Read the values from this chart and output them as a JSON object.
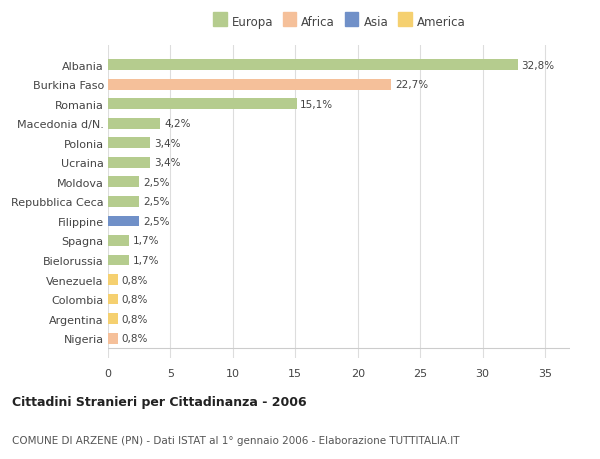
{
  "countries": [
    "Albania",
    "Burkina Faso",
    "Romania",
    "Macedonia d/N.",
    "Polonia",
    "Ucraina",
    "Moldova",
    "Repubblica Ceca",
    "Filippine",
    "Spagna",
    "Bielorussia",
    "Venezuela",
    "Colombia",
    "Argentina",
    "Nigeria"
  ],
  "values": [
    32.8,
    22.7,
    15.1,
    4.2,
    3.4,
    3.4,
    2.5,
    2.5,
    2.5,
    1.7,
    1.7,
    0.8,
    0.8,
    0.8,
    0.8
  ],
  "labels": [
    "32,8%",
    "22,7%",
    "15,1%",
    "4,2%",
    "3,4%",
    "3,4%",
    "2,5%",
    "2,5%",
    "2,5%",
    "1,7%",
    "1,7%",
    "0,8%",
    "0,8%",
    "0,8%",
    "0,8%"
  ],
  "colors": [
    "#b5cc8e",
    "#f5c09a",
    "#b5cc8e",
    "#b5cc8e",
    "#b5cc8e",
    "#b5cc8e",
    "#b5cc8e",
    "#b5cc8e",
    "#7090c8",
    "#b5cc8e",
    "#b5cc8e",
    "#f5d070",
    "#f5d070",
    "#f5d070",
    "#f5c09a"
  ],
  "legend_labels": [
    "Europa",
    "Africa",
    "Asia",
    "America"
  ],
  "legend_colors": [
    "#b5cc8e",
    "#f5c09a",
    "#7090c8",
    "#f5d070"
  ],
  "title": "Cittadini Stranieri per Cittadinanza - 2006",
  "subtitle": "COMUNE DI ARZENE (PN) - Dati ISTAT al 1° gennaio 2006 - Elaborazione TUTTITALIA.IT",
  "xlim": [
    0,
    37
  ],
  "xticks": [
    0,
    5,
    10,
    15,
    20,
    25,
    30,
    35
  ],
  "background_color": "#ffffff",
  "grid_color": "#dddddd",
  "bar_height": 0.55
}
